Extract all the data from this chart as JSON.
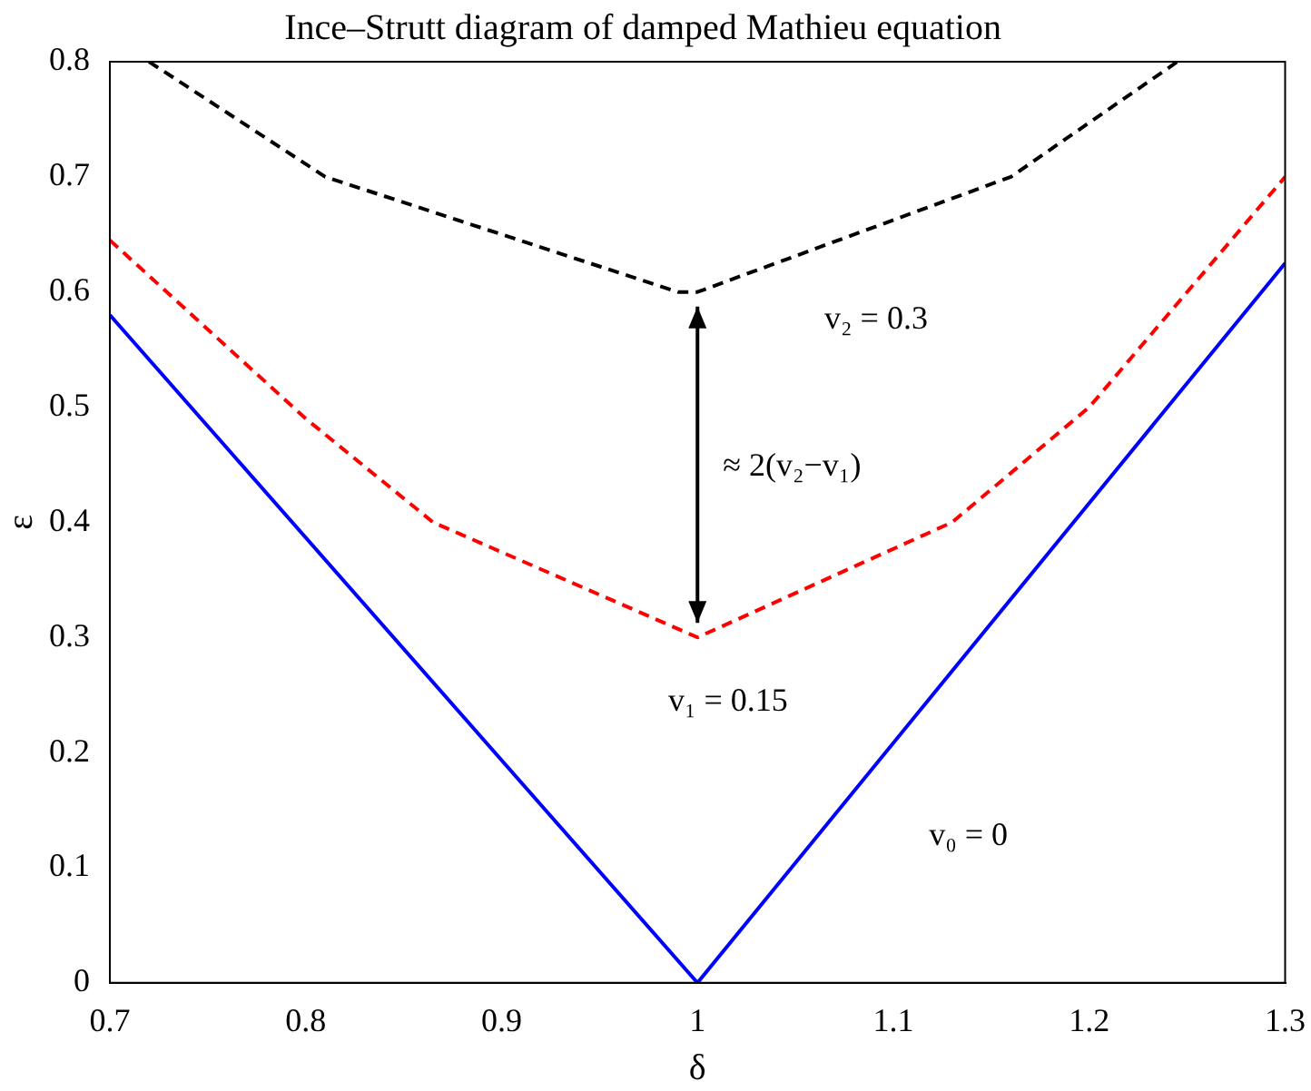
{
  "chart_data": {
    "type": "line",
    "title": "Ince–Strutt diagram of damped Mathieu equation",
    "xlabel": "δ",
    "ylabel": "ε",
    "xlim": [
      0.7,
      1.3
    ],
    "xticks": [
      0.7,
      0.8,
      0.9,
      1,
      1.1,
      1.2,
      1.3
    ],
    "ylim": [
      0,
      0.8
    ],
    "yticks": [
      0,
      0.1,
      0.2,
      0.3,
      0.4,
      0.5,
      0.6,
      0.7,
      0.8
    ],
    "grid": false,
    "legend": false,
    "marker": "none",
    "series": [
      {
        "name": "v₀ = 0",
        "color": "#0000ff",
        "line_style": "solid",
        "x": [
          0.7,
          1,
          1.3
        ],
        "values": [
          0.58,
          0,
          0.625
        ]
      },
      {
        "name": "v₁ = 0.15",
        "color": "#ff0000",
        "line_style": "dashed",
        "x": [
          0.7,
          0.8,
          0.865,
          1,
          1.13,
          1.2,
          1.3
        ],
        "values": [
          0.645,
          0.49,
          0.4,
          0.3,
          0.4,
          0.5,
          0.7
        ]
      },
      {
        "name": "v₂ = 0.3",
        "color": "#000000",
        "line_style": "dashed",
        "x": [
          0.72,
          0.81,
          0.99,
          1,
          1.16,
          1.245
        ],
        "values": [
          0.8,
          0.7,
          0.6,
          0.6,
          0.7,
          0.8
        ]
      }
    ],
    "annotations": [
      "≈ 2(v₂−v₁)"
    ]
  }
}
